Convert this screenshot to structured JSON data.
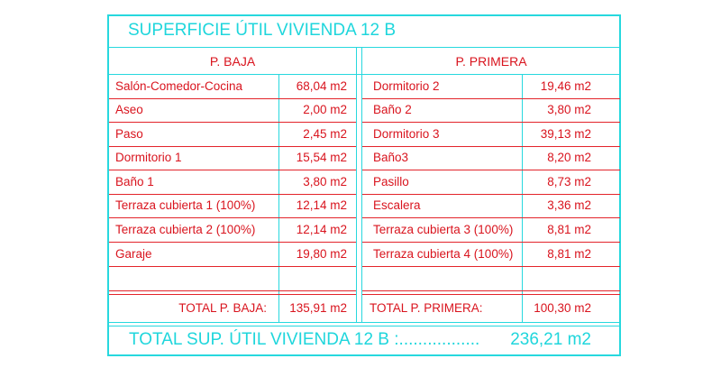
{
  "title": "SUPERFICIE ÚTIL VIVIENDA 12 B",
  "baja": {
    "header": "P. BAJA",
    "rows": [
      {
        "name": "Salón-Comedor-Cocina",
        "area": "68,04 m2"
      },
      {
        "name": "Aseo",
        "area": "2,00 m2"
      },
      {
        "name": "Paso",
        "area": "2,45 m2"
      },
      {
        "name": "Dormitorio 1",
        "area": "15,54 m2"
      },
      {
        "name": "Baño 1",
        "area": "3,80 m2"
      },
      {
        "name": "Terraza cubierta 1 (100%)",
        "area": "12,14 m2"
      },
      {
        "name": "Terraza cubierta 2 (100%)",
        "area": "12,14 m2"
      },
      {
        "name": "Garaje",
        "area": "19,80 m2"
      }
    ],
    "total_label": "TOTAL P. BAJA:",
    "total_value": "135,91 m2"
  },
  "primera": {
    "header": "P. PRIMERA",
    "rows": [
      {
        "name": "Dormitorio 2",
        "area": "19,46 m2"
      },
      {
        "name": "Baño 2",
        "area": "3,80 m2"
      },
      {
        "name": "Dormitorio 3",
        "area": "39,13 m2"
      },
      {
        "name": "Baño3",
        "area": "8,20 m2"
      },
      {
        "name": "Pasillo",
        "area": "8,73 m2"
      },
      {
        "name": "Escalera",
        "area": "3,36 m2"
      },
      {
        "name": "Terraza cubierta 3 (100%)",
        "area": "8,81 m2"
      },
      {
        "name": "Terraza cubierta 4 (100%)",
        "area": "8,81 m2"
      }
    ],
    "total_label": "TOTAL P. PRIMERA:",
    "total_value": "100,30 m2"
  },
  "grand_total": {
    "label": "TOTAL SUP. ÚTIL VIVIENDA 12 B :.................",
    "value": "236,21 m2"
  },
  "colors": {
    "lines_cyan": "#27d8de",
    "text_red": "#d9141e",
    "lines_red": "#e3242b"
  }
}
